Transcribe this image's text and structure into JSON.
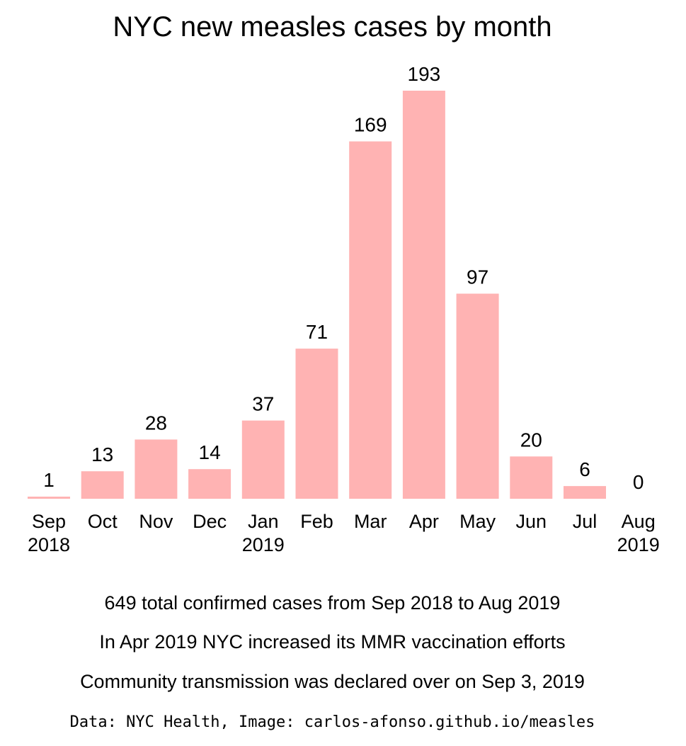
{
  "chart_data": {
    "type": "bar",
    "title": "NYC new measles cases by month",
    "categories": [
      "Sep",
      "Oct",
      "Nov",
      "Dec",
      "Jan",
      "Feb",
      "Mar",
      "Apr",
      "May",
      "Jun",
      "Jul",
      "Aug"
    ],
    "category_years": [
      "2018",
      "",
      "",
      "",
      "2019",
      "",
      "",
      "",
      "",
      "",
      "",
      "2019"
    ],
    "values": [
      1,
      13,
      28,
      14,
      37,
      71,
      169,
      193,
      97,
      20,
      6,
      0
    ],
    "data_labels": [
      "1",
      "13",
      "28",
      "14",
      "37",
      "71",
      "169",
      "193",
      "97",
      "20",
      "6",
      "0"
    ],
    "xlabel": "",
    "ylabel": "",
    "ylim": [
      0,
      193
    ],
    "grid": false,
    "bar_color": "#ffb3b3"
  },
  "notes": [
    "649 total confirmed cases from Sep 2018 to Aug 2019",
    "In Apr 2019 NYC increased its MMR vaccination efforts",
    "Community transmission was declared over on Sep 3, 2019"
  ],
  "source": "Data: NYC Health, Image: carlos-afonso.github.io/measles"
}
